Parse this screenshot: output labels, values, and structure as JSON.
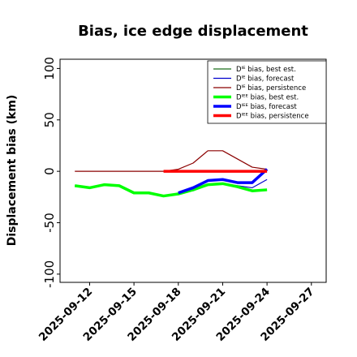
{
  "chart_data": {
    "type": "line",
    "title": "Bias, ice edge displacement",
    "xlabel": "",
    "ylabel": "Displacement bias (km)",
    "x_ticks": [
      "2025-09-12",
      "2025-09-15",
      "2025-09-18",
      "2025-09-21",
      "2025-09-24",
      "2025-09-27"
    ],
    "highlight_tick": "2025-09-18",
    "highlight_color": "#228b22",
    "y_ticks": [
      100,
      50,
      0,
      -50,
      -100
    ],
    "xlim": [
      "2025-09-10",
      "2025-09-28"
    ],
    "ylim": [
      -108,
      109
    ],
    "legend_position": "top-right",
    "series": [
      {
        "name": "Dᴵᴱ bias, best est.",
        "color": "#1a6e1a",
        "width": 1.2,
        "x": [
          "2025-09-11",
          "2025-09-12",
          "2025-09-13",
          "2025-09-14",
          "2025-09-15",
          "2025-09-16",
          "2025-09-17",
          "2025-09-18"
        ],
        "y": [
          -14,
          -16,
          -13,
          -14,
          -21,
          -21,
          -24,
          -22
        ]
      },
      {
        "name": "Dᴵᴱ bias, forecast",
        "color": "#0000cd",
        "width": 1.2,
        "x": [
          "2025-09-18",
          "2025-09-19",
          "2025-09-20",
          "2025-09-21",
          "2025-09-22",
          "2025-09-23",
          "2025-09-24"
        ],
        "y": [
          -21,
          -19,
          -13,
          -12,
          -14,
          -16,
          -8
        ]
      },
      {
        "name": "Dᴵᴱ bias, persistence",
        "color": "#8b0000",
        "width": 1.2,
        "x": [
          "2025-09-11",
          "2025-09-17",
          "2025-09-18",
          "2025-09-19",
          "2025-09-20",
          "2025-09-21",
          "2025-09-22",
          "2025-09-23",
          "2025-09-24"
        ],
        "y": [
          0,
          0,
          2,
          8,
          20,
          20,
          12,
          4,
          2
        ]
      },
      {
        "name": "Dᴵᴱᴱ bias, best est.",
        "color": "#00ff00",
        "width": 3.5,
        "x": [
          "2025-09-11",
          "2025-09-12",
          "2025-09-13",
          "2025-09-14",
          "2025-09-15",
          "2025-09-16",
          "2025-09-17",
          "2025-09-18",
          "2025-09-19",
          "2025-09-20",
          "2025-09-21",
          "2025-09-22",
          "2025-09-23",
          "2025-09-24"
        ],
        "y": [
          -14,
          -16,
          -13,
          -14,
          -21,
          -21,
          -24,
          -22,
          -18,
          -13,
          -12,
          -15,
          -19,
          -18
        ]
      },
      {
        "name": "Dᴵᴱᴱ bias, forecast",
        "color": "#0000ff",
        "width": 3.5,
        "x": [
          "2025-09-18",
          "2025-09-19",
          "2025-09-20",
          "2025-09-21",
          "2025-09-22",
          "2025-09-23",
          "2025-09-24"
        ],
        "y": [
          -21,
          -16,
          -9,
          -8,
          -11,
          -11,
          2
        ]
      },
      {
        "name": "Dᴵᴱᴱ bias, persistence",
        "color": "#ff0000",
        "width": 3.5,
        "x": [
          "2025-09-17",
          "2025-09-18",
          "2025-09-19",
          "2025-09-20",
          "2025-09-21",
          "2025-09-22",
          "2025-09-23",
          "2025-09-24"
        ],
        "y": [
          0,
          0,
          0,
          0,
          0,
          0,
          0,
          0
        ]
      }
    ]
  }
}
